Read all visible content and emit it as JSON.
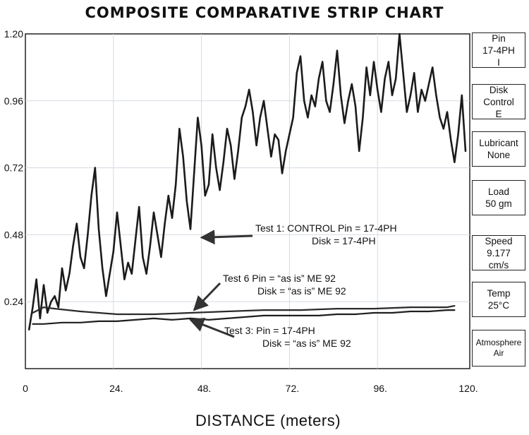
{
  "chart_data": {
    "type": "line",
    "title": "COMPOSITE COMPARATIVE STRIP CHART",
    "xlabel": "DISTANCE (meters)",
    "ylabel": "",
    "xlim": [
      0,
      120
    ],
    "ylim": [
      0.0,
      1.2
    ],
    "x_ticks": [
      "0",
      "24.",
      "48.",
      "72.",
      "96.",
      "120."
    ],
    "x_tick_values": [
      0,
      24,
      48,
      72,
      96,
      120
    ],
    "y_ticks": [
      "1.20",
      "0.96",
      "0.72",
      "0.48",
      "0.24"
    ],
    "y_tick_values": [
      1.2,
      0.96,
      0.72,
      0.48,
      0.24
    ],
    "grid": true,
    "series": [
      {
        "name": "Test 1",
        "x": [
          1,
          2,
          3,
          4,
          5,
          6,
          7,
          8,
          9,
          10,
          11,
          12,
          13,
          14,
          15,
          16,
          17,
          18,
          19,
          20,
          21,
          22,
          23,
          24,
          25,
          26,
          27,
          28,
          29,
          30,
          31,
          32,
          33,
          34,
          35,
          36,
          37,
          38,
          39,
          40,
          41,
          42,
          43,
          44,
          45,
          46,
          47,
          48,
          49,
          50,
          51,
          52,
          53,
          54,
          55,
          56,
          57,
          58,
          59,
          60,
          61,
          62,
          63,
          64,
          65,
          66,
          67,
          68,
          69,
          70,
          71,
          72,
          73,
          74,
          75,
          76,
          77,
          78,
          79,
          80,
          81,
          82,
          83,
          84,
          85,
          86,
          87,
          88,
          89,
          90,
          91,
          92,
          93,
          94,
          95,
          96,
          97,
          98,
          99,
          100,
          101,
          102,
          103,
          104,
          105,
          106,
          107,
          108,
          109,
          110,
          111,
          112,
          113,
          114,
          115,
          116,
          117,
          118,
          119,
          120
        ],
        "values": [
          0.14,
          0.22,
          0.32,
          0.18,
          0.3,
          0.2,
          0.24,
          0.26,
          0.22,
          0.36,
          0.28,
          0.34,
          0.44,
          0.52,
          0.4,
          0.36,
          0.48,
          0.62,
          0.72,
          0.5,
          0.36,
          0.26,
          0.34,
          0.42,
          0.56,
          0.44,
          0.32,
          0.38,
          0.34,
          0.46,
          0.58,
          0.4,
          0.34,
          0.44,
          0.56,
          0.48,
          0.4,
          0.52,
          0.62,
          0.54,
          0.66,
          0.86,
          0.76,
          0.6,
          0.5,
          0.7,
          0.9,
          0.8,
          0.62,
          0.66,
          0.84,
          0.72,
          0.64,
          0.74,
          0.86,
          0.8,
          0.68,
          0.78,
          0.9,
          0.94,
          1.0,
          0.92,
          0.8,
          0.9,
          0.96,
          0.86,
          0.76,
          0.84,
          0.82,
          0.7,
          0.78,
          0.84,
          0.9,
          1.06,
          1.12,
          0.96,
          0.9,
          0.98,
          0.94,
          1.04,
          1.1,
          0.96,
          0.92,
          1.02,
          1.14,
          0.98,
          0.88,
          0.96,
          1.02,
          0.94,
          0.78,
          0.9,
          1.08,
          0.98,
          1.1,
          1.0,
          0.92,
          1.04,
          1.1,
          0.98,
          1.04,
          1.2,
          1.06,
          0.92,
          0.98,
          1.06,
          0.92,
          1.0,
          0.96,
          1.02,
          1.08,
          0.98,
          0.9,
          0.86,
          0.92,
          0.82,
          0.74,
          0.84,
          0.98,
          0.78
        ]
      },
      {
        "name": "Test 6",
        "x": [
          2,
          5,
          8,
          15,
          25,
          35,
          45,
          55,
          65,
          75,
          85,
          95,
          105,
          115,
          117
        ],
        "values": [
          0.2,
          0.22,
          0.215,
          0.205,
          0.195,
          0.195,
          0.2,
          0.205,
          0.21,
          0.21,
          0.215,
          0.215,
          0.22,
          0.22,
          0.225
        ]
      },
      {
        "name": "Test 3",
        "x": [
          2,
          5,
          10,
          15,
          20,
          25,
          30,
          35,
          40,
          45,
          50,
          55,
          60,
          65,
          70,
          75,
          80,
          85,
          90,
          95,
          100,
          105,
          110,
          115,
          117
        ],
        "values": [
          0.16,
          0.16,
          0.165,
          0.165,
          0.17,
          0.17,
          0.175,
          0.18,
          0.175,
          0.18,
          0.175,
          0.18,
          0.185,
          0.19,
          0.19,
          0.19,
          0.19,
          0.195,
          0.195,
          0.2,
          0.2,
          0.205,
          0.205,
          0.21,
          0.21
        ]
      }
    ],
    "annotations": [
      {
        "text_line1": "Test 1: CONTROL Pin = 17-4PH",
        "text_line2": "Disk = 17-4PH",
        "arrow_to": [
          48,
          0.47
        ]
      },
      {
        "text_line1": "Test 6 Pin = “as is” ME 92",
        "text_line2": "Disk = “as is” ME 92",
        "arrow_to": [
          46,
          0.21
        ]
      },
      {
        "text_line1": "Test 3: Pin = 17-4PH",
        "text_line2": "Disk = “as is” ME 92",
        "arrow_to": [
          45,
          0.175
        ]
      }
    ]
  },
  "sidebar": [
    {
      "lines": [
        "Pin",
        "17-4PH",
        "I"
      ]
    },
    {
      "lines": [
        "Disk",
        "Control",
        "E"
      ]
    },
    {
      "lines": [
        "Lubricant",
        "None"
      ]
    },
    {
      "lines": [
        "Load",
        "50 gm"
      ]
    },
    {
      "lines": [
        "Speed",
        "9.177",
        "cm/s"
      ]
    },
    {
      "lines": [
        "Temp",
        "25°C"
      ]
    },
    {
      "lines": [
        "Atmosphere",
        "Air"
      ]
    }
  ]
}
